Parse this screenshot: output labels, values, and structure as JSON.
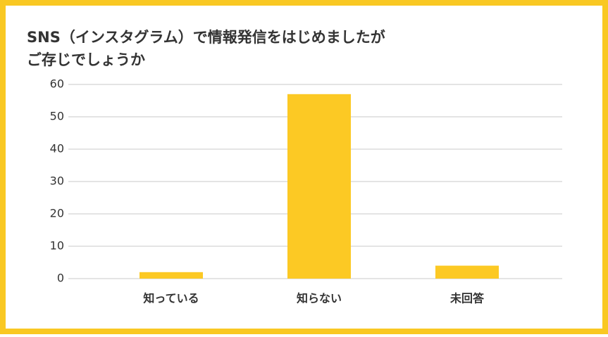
{
  "chart_data": {
    "type": "bar",
    "title": [
      "SNS（インスタグラム）で情報発信をはじめましたが",
      "ご存じでしょうか"
    ],
    "categories": [
      "知っている",
      "知らない",
      "未回答"
    ],
    "values": [
      2,
      57,
      4
    ],
    "color": "#fcc924",
    "ylim": [
      0,
      60
    ],
    "yticks": [
      0,
      10,
      20,
      30,
      40,
      50,
      60
    ],
    "grid": true
  }
}
